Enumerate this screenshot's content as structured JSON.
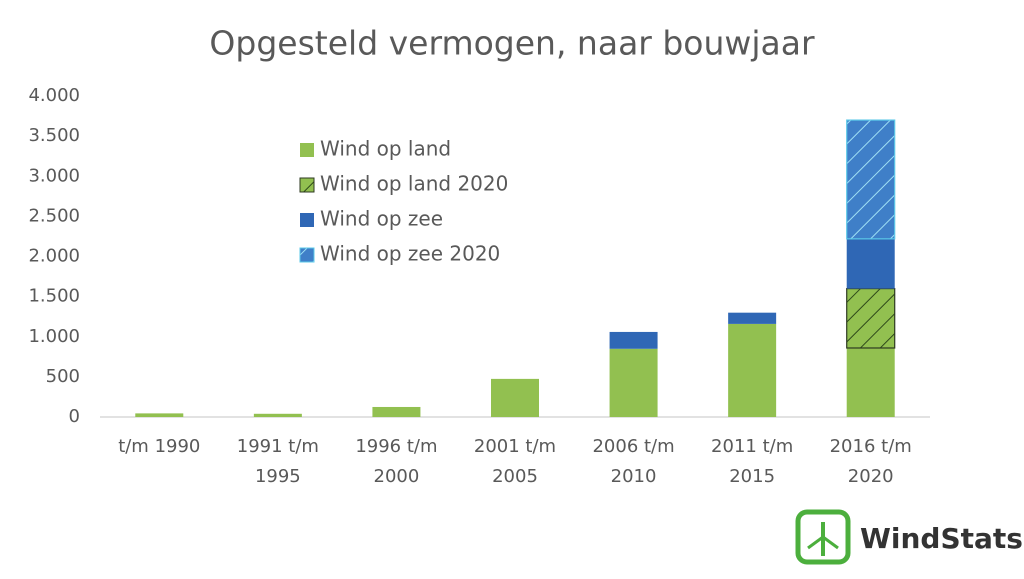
{
  "chart_data": {
    "type": "bar",
    "stacked": true,
    "title": "Opgesteld vermogen, naar bouwjaar",
    "categories": [
      "t/m 1990",
      "1991 t/m 1995",
      "1996 t/m 2000",
      "2001 t/m 2005",
      "2006 t/m 2010",
      "2011 t/m 2015",
      "2016 t/m 2020"
    ],
    "series": [
      {
        "name": "Wind op land",
        "color": "#92c050",
        "values": [
          45,
          40,
          125,
          475,
          850,
          1160,
          860
        ]
      },
      {
        "name": "Wind op land 2020",
        "color": "#92c050",
        "hatch": true,
        "values": [
          null,
          null,
          null,
          null,
          null,
          null,
          740
        ]
      },
      {
        "name": "Wind op zee",
        "color": "#2f67b5",
        "values": [
          null,
          null,
          null,
          null,
          210,
          140,
          620
        ]
      },
      {
        "name": "Wind op zee 2020",
        "color": "#3f7fc8",
        "hatch": true,
        "values": [
          null,
          null,
          null,
          null,
          null,
          null,
          1480
        ]
      }
    ],
    "ylim": [
      0,
      4000
    ],
    "yticks": [
      0,
      500,
      {
        "value": 1000,
        "label": "1.000"
      },
      {
        "value": 1500,
        "label": "1.500"
      },
      {
        "value": 2000,
        "label": "2.000"
      },
      {
        "value": 2500,
        "label": "2.500"
      },
      {
        "value": 3000,
        "label": "3.000"
      },
      {
        "value": 3500,
        "label": "3.500"
      },
      {
        "value": 4000,
        "label": "4.000"
      }
    ],
    "grid": false,
    "legend": "top-left"
  },
  "logo": "WindStats"
}
